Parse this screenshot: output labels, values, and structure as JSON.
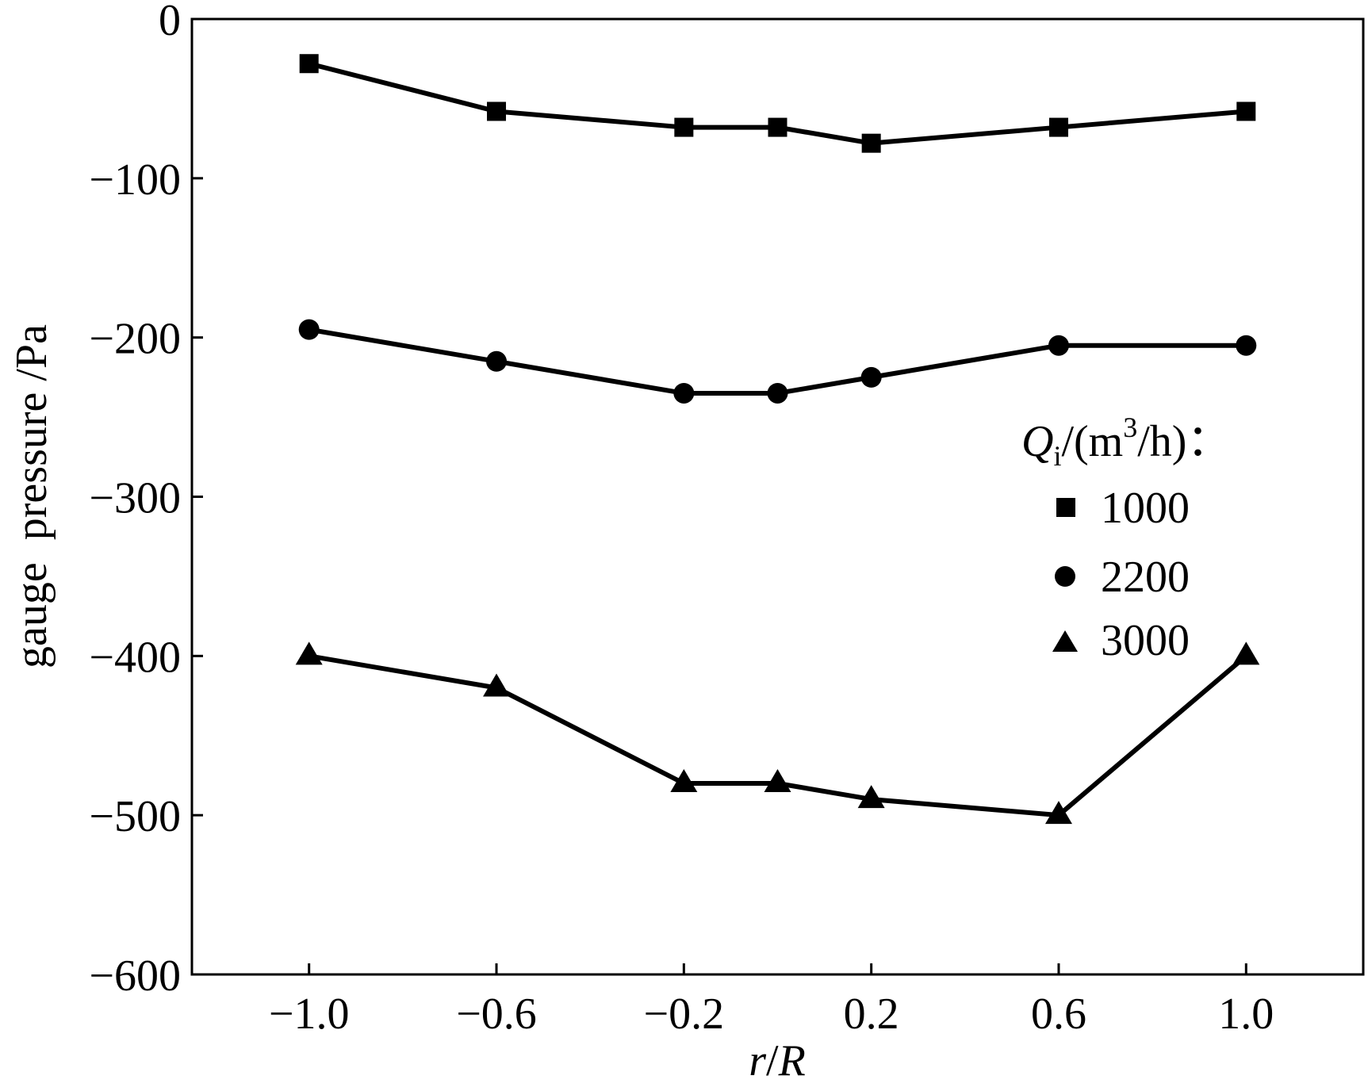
{
  "chart_data": {
    "type": "line",
    "xlabel": {
      "var_a": "r",
      "sep": "/",
      "var_b": "R"
    },
    "ylabel": "gauge  pressure /Pa",
    "xlim": [
      -1.25,
      1.25
    ],
    "ylim": [
      -600,
      0
    ],
    "x_ticks": [
      -1.0,
      -0.6,
      -0.2,
      0.2,
      0.6,
      1.0
    ],
    "x_tick_labels": [
      "−1.0",
      "−0.6",
      "−0.2",
      "0.2",
      "0.6",
      "1.0"
    ],
    "y_ticks": [
      0,
      -100,
      -200,
      -300,
      -400,
      -500,
      -600
    ],
    "y_tick_labels": [
      "0",
      "−100",
      "−200",
      "−300",
      "−400",
      "−500",
      "−600"
    ],
    "x": [
      -1.0,
      -0.6,
      -0.2,
      0.0,
      0.2,
      0.6,
      1.0
    ],
    "series": [
      {
        "name": "1000",
        "marker": "square",
        "values": [
          -28,
          -58,
          -68,
          -68,
          -78,
          -68,
          -58
        ]
      },
      {
        "name": "2200",
        "marker": "circle",
        "values": [
          -195,
          -215,
          -235,
          -235,
          -225,
          -205,
          -205
        ]
      },
      {
        "name": "3000",
        "marker": "triangle",
        "values": [
          -400,
          -420,
          -480,
          -480,
          -490,
          -500,
          -400
        ]
      }
    ],
    "legend": {
      "title": {
        "var": "Q",
        "sub": "i",
        "pre_unit": "/(m",
        "sup": "3",
        "post_unit": "/h)",
        "suffix": "："
      },
      "placement": "right",
      "entries": [
        "1000",
        "2200",
        "3000"
      ]
    },
    "grid": false,
    "line_color": "#000000"
  }
}
